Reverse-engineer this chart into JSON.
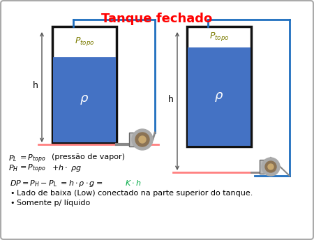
{
  "title": "Tanque fechado",
  "title_color": "#FF0000",
  "bg_color": "#FFFFFF",
  "border_color": "#AAAAAA",
  "tank_border_color": "#111111",
  "tank_fill_color": "#4472C4",
  "tank_top_color": "#FFFFFF",
  "blue_line_color": "#1F6FBF",
  "red_line_color": "#FF8080",
  "arrow_color": "#555555",
  "text_color": "#000000",
  "green_color": "#00AA44",
  "olive_color": "#7B7B00",
  "bullet1": "Lado de baixa (Low) conectado na parte superior do tanque.",
  "bullet2": "Somente p/ líquido"
}
